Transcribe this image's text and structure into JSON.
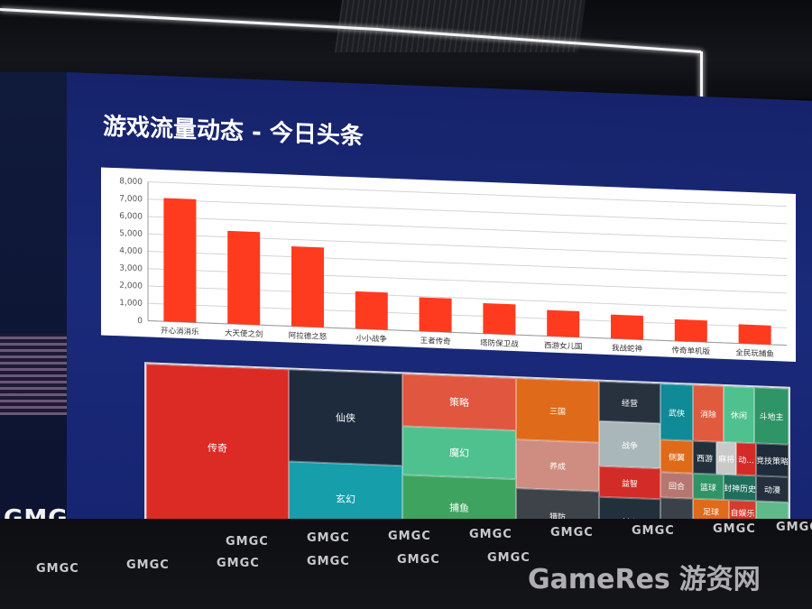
{
  "slide": {
    "title": "游戏流量动态 - 今日头条"
  },
  "chart_data": [
    {
      "type": "bar",
      "categories": [
        "开心消消乐",
        "大天使之剑",
        "阿拉德之怒",
        "小小战争",
        "王者传奇",
        "塔防保卫战",
        "西游女儿国",
        "我战蛇神",
        "传奇单机版",
        "全民玩捕鱼"
      ],
      "values": [
        7100,
        5350,
        4600,
        2150,
        1950,
        1750,
        1500,
        1380,
        1250,
        1100
      ],
      "ylim": [
        0,
        8000
      ],
      "yticks": [
        "0",
        "1,000",
        "2,000",
        "3,000",
        "4,000",
        "5,000",
        "6,000",
        "7,000",
        "8,000"
      ],
      "grid": true,
      "color": "#ff3b1f"
    },
    {
      "type": "treemap",
      "labels": [
        "传奇",
        "仙侠",
        "玄幻",
        "策略",
        "魔幻",
        "捕鱼",
        "三国",
        "养成",
        "猎防",
        "经营",
        "战争",
        "益智",
        "射击",
        "卡牌",
        "武侠",
        "消除",
        "休闲",
        "斗地主",
        "侧翼",
        "西游",
        "麻将",
        "动...",
        "竞技策略",
        "回合",
        "篮球",
        "封神历史",
        "动漫",
        "跑跳",
        "足球",
        "自娱乐"
      ]
    }
  ],
  "floor": {
    "logos": [
      "GMGC",
      "GMGC",
      "GMGC",
      "GMGC",
      "GMGC",
      "GMGC",
      "GMGC",
      "GMGC",
      "GMGC",
      "GMGC",
      "GMGC",
      "GMGC",
      "GMGC",
      "GMGC"
    ],
    "side_logo": "GMG"
  },
  "watermark": {
    "brand": "GameRes",
    "cn": "游资网"
  }
}
